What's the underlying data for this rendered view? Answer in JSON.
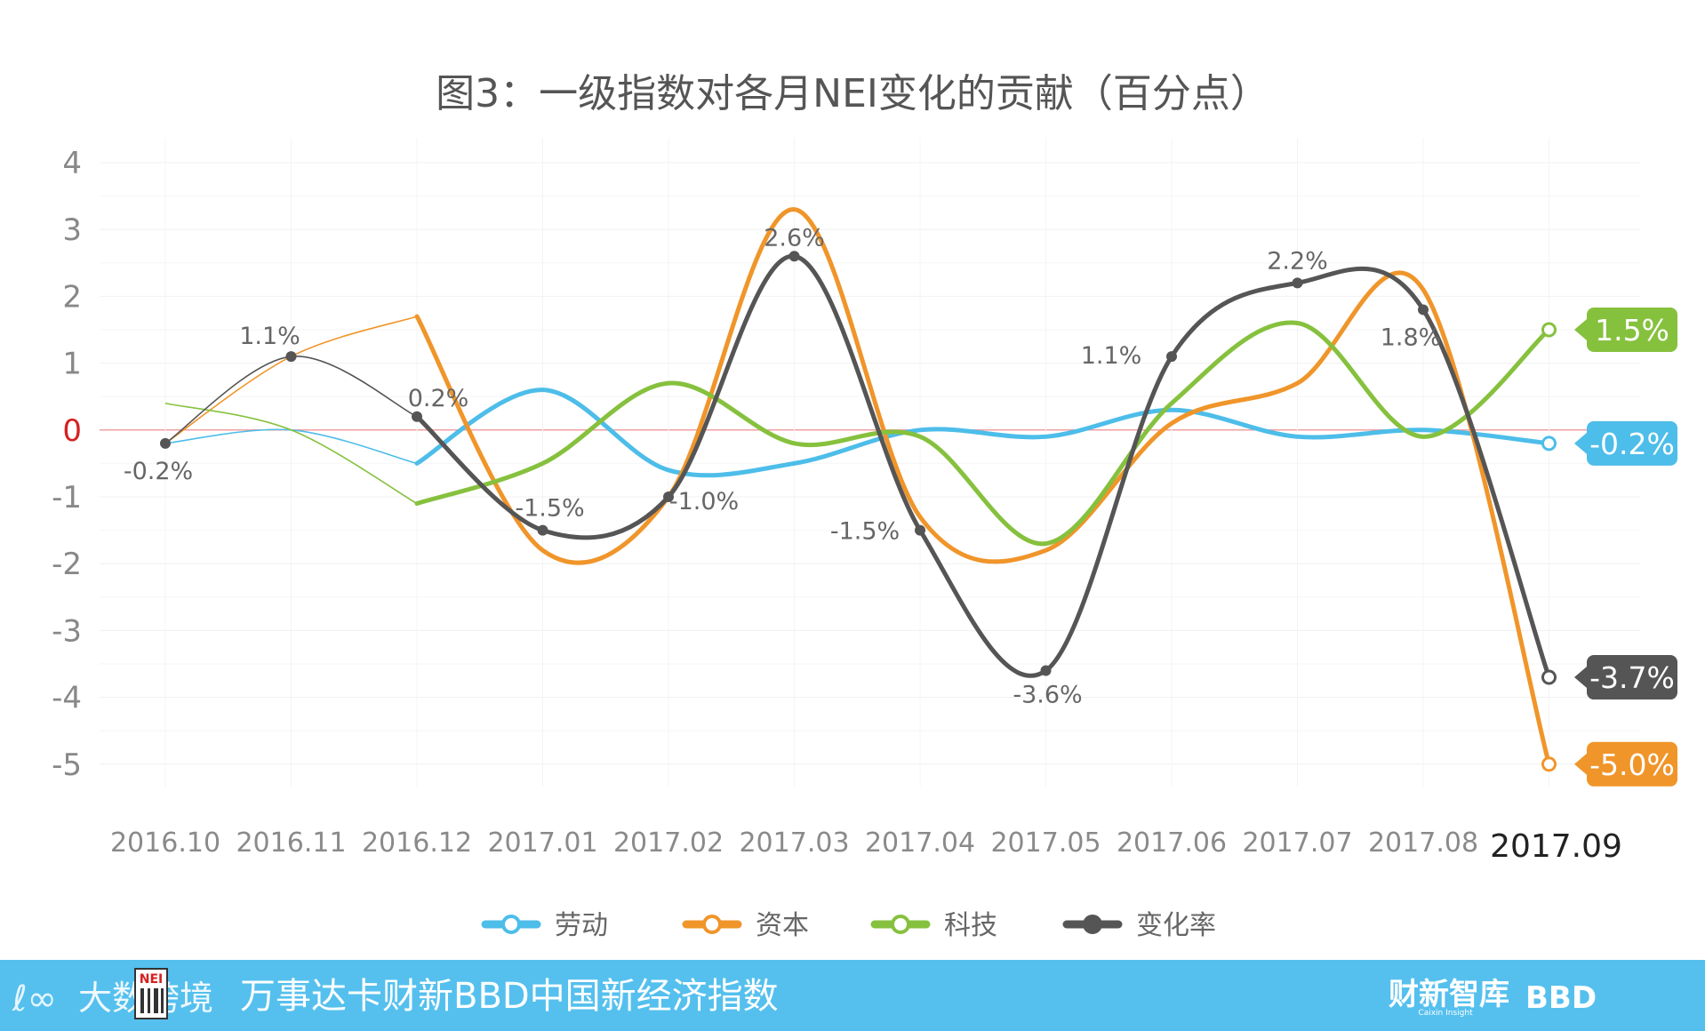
{
  "chart_data": {
    "type": "line",
    "title": "图3：一级指数对各月NEI变化的贡献（百分点）",
    "categories": [
      "2016.10",
      "2016.11",
      "2016.12",
      "2017.01",
      "2017.02",
      "2017.03",
      "2017.04",
      "2017.05",
      "2017.06",
      "2017.07",
      "2017.08",
      "2017.09"
    ],
    "ylim": [
      -5,
      4
    ],
    "yticks": [
      4,
      3,
      2,
      1,
      0,
      -1,
      -2,
      -3,
      -4,
      -5
    ],
    "grid": true,
    "legend_position": "bottom",
    "series": [
      {
        "name": "劳动",
        "color": "#4dbde9",
        "values": [
          -0.2,
          0.0,
          -0.5,
          0.6,
          -0.6,
          -0.5,
          0.0,
          -0.1,
          0.3,
          -0.1,
          0.0,
          -0.2
        ]
      },
      {
        "name": "资本",
        "color": "#f0952a",
        "values": [
          -0.2,
          1.1,
          1.7,
          -1.8,
          -1.0,
          3.3,
          -1.3,
          -1.8,
          0.1,
          0.7,
          2.1,
          -5.0
        ]
      },
      {
        "name": "科技",
        "color": "#86c13e",
        "values": [
          0.4,
          0.0,
          -1.1,
          -0.5,
          0.7,
          -0.2,
          -0.1,
          -1.7,
          0.4,
          1.6,
          -0.1,
          1.5
        ]
      },
      {
        "name": "变化率",
        "color": "#555555",
        "values": [
          -0.2,
          1.1,
          0.2,
          -1.5,
          -1.0,
          2.6,
          -1.5,
          -3.6,
          1.1,
          2.2,
          1.8,
          -3.7
        ]
      }
    ],
    "point_labels": [
      "-0.2%",
      "1.1%",
      "0.2%",
      "-1.5%",
      "-1.0%",
      "2.6%",
      "-1.5%",
      "-3.6%",
      "1.1%",
      "2.2%",
      "1.8%"
    ],
    "end_labels": [
      {
        "series": "科技",
        "text": "1.5%",
        "color": "#86c13e"
      },
      {
        "series": "劳动",
        "text": "-0.2%",
        "color": "#4dbde9"
      },
      {
        "series": "变化率",
        "text": "-3.7%",
        "color": "#555555"
      },
      {
        "series": "资本",
        "text": "-5.0%",
        "color": "#f0952a"
      }
    ]
  },
  "footer": {
    "title": "万事达卡财新BBD中国新经济指数",
    "logo_left_text": "大数跨境",
    "logo_badge": "NEI",
    "brand_right_1": "财新智库",
    "brand_right_1_sub": "Caixin Insight",
    "brand_right_2": "BBD",
    "bar_color": "#55c0ee"
  }
}
